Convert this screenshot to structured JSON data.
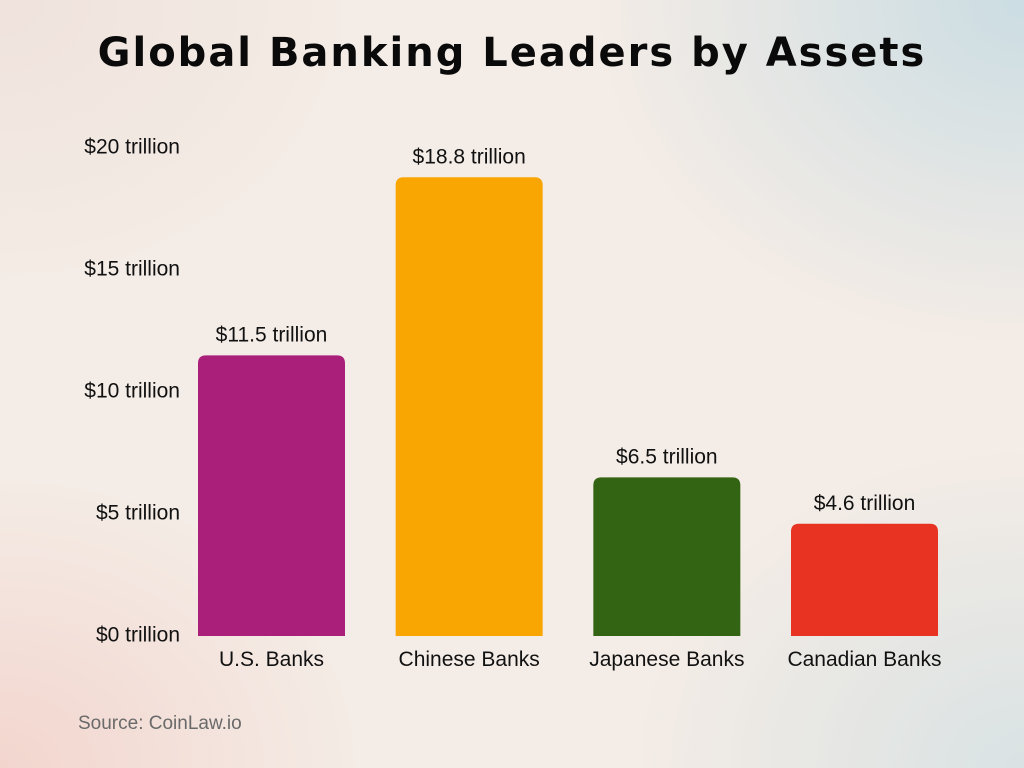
{
  "chart_data": {
    "type": "bar",
    "title": "Global Banking Leaders by Assets",
    "categories": [
      "U.S. Banks",
      "Chinese Banks",
      "Japanese Banks",
      "Canadian Banks"
    ],
    "values": [
      11.5,
      18.8,
      6.5,
      4.6
    ],
    "data_labels": [
      "$11.5 trillion",
      "$18.8 trillion",
      "$6.5 trillion",
      "$4.6 trillion"
    ],
    "colors": [
      "#a91f7a",
      "#f9a602",
      "#336414",
      "#e83222"
    ],
    "y_ticks": [
      0,
      5,
      10,
      15,
      20
    ],
    "y_tick_labels": [
      "$0 trillion",
      "$5 trillion",
      "$10 trillion",
      "$15 trillion",
      "$20 trillion"
    ],
    "ylim": [
      0,
      20
    ],
    "xlabel": "",
    "ylabel": "",
    "grid": false,
    "legend": "none"
  },
  "footer": {
    "source": "Source: CoinLaw.io"
  }
}
